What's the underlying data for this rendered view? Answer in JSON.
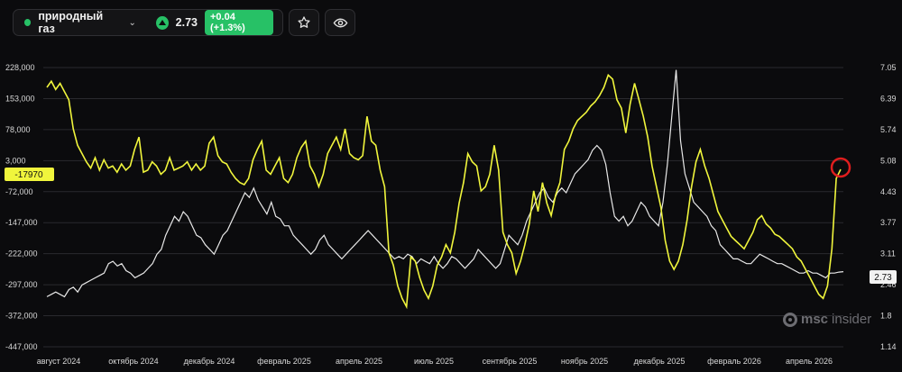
{
  "header": {
    "asset_label": "природный газ",
    "price": "2.73",
    "change": "+0.04 (+1.3%)",
    "star_icon": "star-icon",
    "eye_icon": "eye-icon"
  },
  "watermark": {
    "left": "msc",
    "right": "insider"
  },
  "colors": {
    "yellow": "#f0f53c",
    "white": "#e8e8e8",
    "green": "#27c166",
    "red": "#e01e1e"
  },
  "chart_data": {
    "type": "line",
    "left_axis": {
      "ticks": [
        "228,000",
        "153,000",
        "78,000",
        "3,000",
        "-72,000",
        "-147,000",
        "-222,000",
        "-297,000",
        "-372,000",
        "-447,000"
      ],
      "min": -447000,
      "max": 228000
    },
    "right_axis": {
      "ticks": [
        "7.05",
        "6.39",
        "5.74",
        "5.08",
        "4.43",
        "3.77",
        "3.11",
        "2.46",
        "1.8",
        "1.14"
      ],
      "min": 1.14,
      "max": 7.05
    },
    "x_ticks": [
      "август 2024",
      "октябрь 2024",
      "декабрь 2024",
      "февраль 2025",
      "апрель 2025",
      "июль 2025",
      "сентябрь 2025",
      "ноябрь 2025",
      "декабрь 2025",
      "февраль 2026",
      "апрель 2026"
    ],
    "left_value_label": "-17970",
    "right_value_label": "2.73",
    "series": [
      {
        "axis": "left",
        "values": [
          180000,
          195000,
          175000,
          190000,
          170000,
          150000,
          80000,
          40000,
          20000,
          0,
          -15000,
          10000,
          -20000,
          5000,
          -15000,
          -10000,
          -25000,
          -5000,
          -20000,
          -10000,
          30000,
          60000,
          -25000,
          -20000,
          0,
          -10000,
          -30000,
          -20000,
          10000,
          -20000,
          -15000,
          -10000,
          0,
          -20000,
          -5000,
          -20000,
          -10000,
          45000,
          60000,
          15000,
          0,
          -5000,
          -25000,
          -40000,
          -50000,
          -55000,
          -40000,
          5000,
          30000,
          50000,
          -20000,
          -30000,
          -10000,
          10000,
          -40000,
          -50000,
          -30000,
          10000,
          35000,
          50000,
          -10000,
          -30000,
          -60000,
          -30000,
          20000,
          40000,
          60000,
          30000,
          80000,
          20000,
          10000,
          5000,
          15000,
          110000,
          50000,
          40000,
          -20000,
          -60000,
          -220000,
          -250000,
          -300000,
          -330000,
          -350000,
          -230000,
          -240000,
          -280000,
          -310000,
          -330000,
          -300000,
          -250000,
          -230000,
          -200000,
          -220000,
          -170000,
          -100000,
          -50000,
          20000,
          0,
          -10000,
          -70000,
          -60000,
          -30000,
          40000,
          -20000,
          -170000,
          -200000,
          -220000,
          -270000,
          -240000,
          -200000,
          -150000,
          -70000,
          -120000,
          -50000,
          -100000,
          -130000,
          -80000,
          -50000,
          30000,
          50000,
          80000,
          100000,
          110000,
          120000,
          135000,
          145000,
          160000,
          180000,
          210000,
          200000,
          150000,
          130000,
          70000,
          140000,
          190000,
          150000,
          110000,
          60000,
          -10000,
          -60000,
          -110000,
          -190000,
          -240000,
          -260000,
          -240000,
          -200000,
          -140000,
          -60000,
          0,
          30000,
          -10000,
          -40000,
          -80000,
          -120000,
          -140000,
          -160000,
          -180000,
          -190000,
          -200000,
          -210000,
          -190000,
          -170000,
          -140000,
          -130000,
          -150000,
          -160000,
          -175000,
          -180000,
          -190000,
          -200000,
          -210000,
          -230000,
          -240000,
          -260000,
          -280000,
          -300000,
          -320000,
          -330000,
          -300000,
          -210000,
          -40000,
          -17970
        ]
      },
      {
        "axis": "right",
        "values": [
          2.2,
          2.25,
          2.3,
          2.25,
          2.2,
          2.35,
          2.4,
          2.3,
          2.45,
          2.5,
          2.55,
          2.6,
          2.65,
          2.7,
          2.9,
          2.95,
          2.85,
          2.9,
          2.75,
          2.7,
          2.6,
          2.65,
          2.7,
          2.8,
          2.9,
          3.1,
          3.2,
          3.5,
          3.7,
          3.9,
          3.8,
          4.0,
          3.9,
          3.7,
          3.5,
          3.45,
          3.3,
          3.2,
          3.1,
          3.3,
          3.5,
          3.6,
          3.8,
          4.0,
          4.2,
          4.4,
          4.3,
          4.5,
          4.25,
          4.1,
          3.95,
          4.2,
          3.9,
          3.85,
          3.7,
          3.7,
          3.5,
          3.4,
          3.3,
          3.2,
          3.1,
          3.2,
          3.4,
          3.5,
          3.3,
          3.2,
          3.1,
          3.0,
          3.1,
          3.2,
          3.3,
          3.4,
          3.5,
          3.6,
          3.5,
          3.4,
          3.3,
          3.2,
          3.1,
          3.0,
          3.05,
          3.0,
          3.1,
          3.05,
          2.9,
          3.0,
          2.95,
          2.9,
          3.05,
          2.9,
          2.8,
          2.9,
          3.05,
          3.0,
          2.9,
          2.8,
          2.9,
          3.0,
          3.2,
          3.1,
          3.0,
          2.9,
          2.8,
          2.9,
          3.2,
          3.5,
          3.4,
          3.3,
          3.5,
          3.8,
          4.0,
          4.2,
          4.4,
          4.5,
          4.3,
          4.2,
          4.4,
          4.5,
          4.4,
          4.6,
          4.8,
          4.9,
          5.0,
          5.1,
          5.3,
          5.4,
          5.3,
          5.0,
          4.4,
          3.9,
          3.8,
          3.9,
          3.7,
          3.8,
          4.0,
          4.2,
          4.1,
          3.9,
          3.8,
          3.7,
          4.2,
          5.0,
          6.0,
          7.0,
          5.5,
          4.8,
          4.5,
          4.2,
          4.1,
          4.0,
          3.9,
          3.7,
          3.6,
          3.3,
          3.2,
          3.1,
          3.0,
          3.0,
          2.95,
          2.9,
          2.9,
          3.0,
          3.1,
          3.05,
          3.0,
          2.95,
          2.9,
          2.9,
          2.85,
          2.8,
          2.75,
          2.7,
          2.7,
          2.75,
          2.7,
          2.7,
          2.65,
          2.6,
          2.7,
          2.7,
          2.72,
          2.73
        ]
      }
    ]
  }
}
